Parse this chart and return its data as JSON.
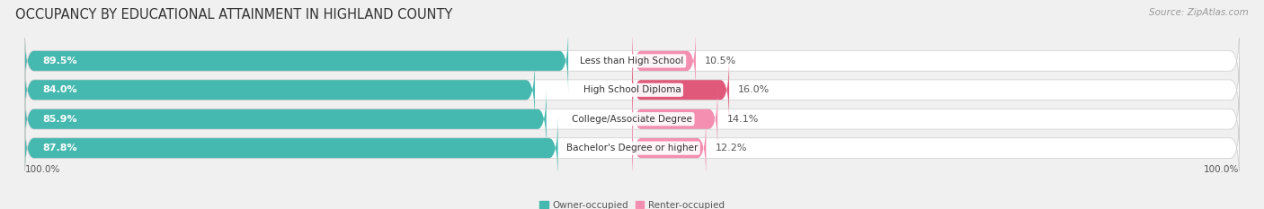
{
  "title": "OCCUPANCY BY EDUCATIONAL ATTAINMENT IN HIGHLAND COUNTY",
  "source": "Source: ZipAtlas.com",
  "categories": [
    "Less than High School",
    "High School Diploma",
    "College/Associate Degree",
    "Bachelor's Degree or higher"
  ],
  "owner_pct": [
    89.5,
    84.0,
    85.9,
    87.8
  ],
  "renter_pct": [
    10.5,
    16.0,
    14.1,
    12.2
  ],
  "owner_color": "#45b8b0",
  "renter_color": "#f48fb1",
  "renter_color_2": "#e0587a",
  "bg_color": "#f0f0f0",
  "bar_bg_color": "#e0e0e0",
  "bar_row_bg": "#e8e8e8",
  "title_fontsize": 10.5,
  "source_fontsize": 7.5,
  "label_fontsize": 7.5,
  "pct_fontsize": 8,
  "bar_height": 0.7,
  "axis_label_left": "100.0%",
  "axis_label_right": "100.0%"
}
